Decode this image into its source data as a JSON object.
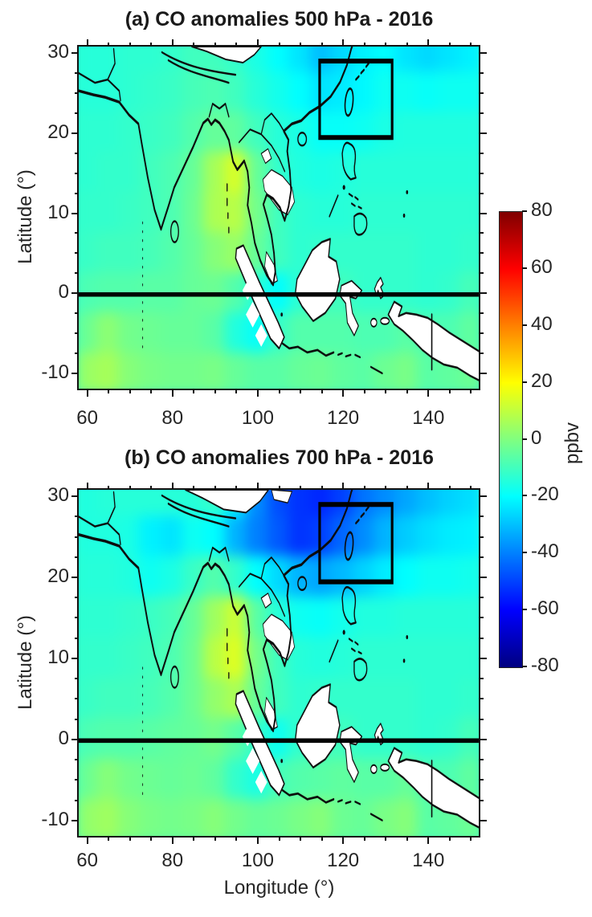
{
  "figure": {
    "panels": [
      {
        "label": "a",
        "title": "(a) CO anomalies 500 hPa - 2016",
        "pressure_level": "500 hPa",
        "year": "2016"
      },
      {
        "label": "b",
        "title": "(b) CO anomalies 700 hPa - 2016",
        "pressure_level": "700 hPa",
        "year": "2016"
      }
    ],
    "axes": {
      "x_label": "Longitude (°)",
      "y_label": "Latitude (°)",
      "x_ticks": [
        60,
        80,
        100,
        120,
        140
      ],
      "y_ticks": [
        30,
        20,
        10,
        0,
        -10
      ],
      "xlim": [
        58,
        152
      ],
      "ylim": [
        -12,
        30.8
      ]
    },
    "colorbar": {
      "label": "ppbv",
      "ticks": [
        80,
        60,
        40,
        20,
        0,
        -20,
        -40,
        -60,
        -80
      ],
      "min": -80,
      "max": 80,
      "colormap": "jet",
      "orientation": "vertical"
    },
    "annotations": {
      "study_box": {
        "lon_min": 114.5,
        "lon_max": 131.5,
        "lat_min": 19.5,
        "lat_max": 29
      },
      "equator_line_lat": 0
    }
  },
  "chart_data": [
    {
      "type": "heatmap",
      "title": "(a) CO anomalies 500 hPa - 2016",
      "xlabel": "Longitude (°)",
      "ylabel": "Latitude (°)",
      "units": "ppbv",
      "lon": [
        60,
        65,
        70,
        75,
        80,
        85,
        90,
        95,
        100,
        105,
        110,
        115,
        120,
        125,
        130,
        135,
        140,
        145,
        150
      ],
      "lat": [
        30,
        25,
        20,
        15,
        10,
        5,
        0,
        -5,
        -10
      ],
      "values_ppbv": [
        [
          -14,
          -14,
          -13,
          -13,
          -12,
          -10,
          -10,
          -12,
          -16,
          -20,
          -24,
          -30,
          -26,
          -22,
          -20,
          -24,
          -26,
          -24,
          -22
        ],
        [
          -14,
          -14,
          -13,
          -12,
          -11,
          -9,
          -8,
          -10,
          -14,
          -17,
          -20,
          -24,
          -23,
          -21,
          -18,
          -18,
          -19,
          -18,
          -18
        ],
        [
          -13,
          -13,
          -12,
          -11,
          -10,
          -7,
          -4,
          -5,
          -10,
          -14,
          -16,
          -19,
          -19,
          -18,
          -16,
          -15,
          -15,
          -15,
          -15
        ],
        [
          -13,
          -12,
          -12,
          -10,
          -8,
          -4,
          6,
          14,
          -4,
          -12,
          -15,
          -16,
          -15,
          -14,
          -14,
          -14,
          -14,
          -14,
          -14
        ],
        [
          -12,
          -12,
          -11,
          -10,
          -8,
          -3,
          7,
          9,
          -2,
          -10,
          -13,
          -14,
          -14,
          -13,
          -13,
          -13,
          -13,
          -13,
          -13
        ],
        [
          -11,
          -10,
          -10,
          -9,
          -7,
          -4,
          1,
          4,
          -4,
          -10,
          -13,
          -12,
          -12,
          -12,
          -12,
          -12,
          -13,
          -13,
          -12
        ],
        [
          -8,
          -7,
          -7,
          -6,
          -6,
          -4,
          -3,
          -7,
          -14,
          -20,
          -13,
          -10,
          -10,
          -12,
          -12,
          -12,
          -13,
          -12,
          -9
        ],
        [
          -3,
          2,
          -2,
          -3,
          -4,
          -4,
          -6,
          -15,
          -19,
          -11,
          -7,
          -7,
          -7,
          -8,
          -8,
          -6,
          -8,
          -8,
          -5
        ],
        [
          4,
          6,
          1,
          -1,
          -2,
          -2,
          -1,
          -4,
          -6,
          -6,
          -4,
          -3,
          -5,
          -6,
          -3,
          -1,
          -6,
          -5,
          -3
        ]
      ]
    },
    {
      "type": "heatmap",
      "title": "(b) CO anomalies 700 hPa - 2016",
      "xlabel": "Longitude (°)",
      "ylabel": "Latitude (°)",
      "units": "ppbv",
      "lon": [
        60,
        65,
        70,
        75,
        80,
        85,
        90,
        95,
        100,
        105,
        110,
        115,
        120,
        125,
        130,
        135,
        140,
        145,
        150
      ],
      "lat": [
        30,
        25,
        20,
        15,
        10,
        5,
        0,
        -5,
        -10
      ],
      "values_ppbv": [
        [
          -15,
          -14,
          -14,
          -14,
          -14,
          -14,
          -12,
          -22,
          -38,
          -48,
          -52,
          -54,
          -50,
          -42,
          -38,
          -34,
          -30,
          -27,
          -25
        ],
        [
          -15,
          -15,
          -16,
          -22,
          -24,
          -18,
          -20,
          -32,
          -40,
          -46,
          -52,
          -50,
          -44,
          -38,
          -32,
          -28,
          -25,
          -23,
          -22
        ],
        [
          -14,
          -14,
          -15,
          -18,
          -16,
          -11,
          -7,
          -12,
          -20,
          -26,
          -32,
          -34,
          -31,
          -27,
          -23,
          -20,
          -18,
          -18,
          -17
        ],
        [
          -13,
          -13,
          -12,
          -11,
          -9,
          -4,
          5,
          12,
          -6,
          -14,
          -18,
          -19,
          -17,
          -15,
          -15,
          -14,
          -14,
          -14,
          -14
        ],
        [
          -12,
          -12,
          -11,
          -10,
          -8,
          -3,
          9,
          15,
          -2,
          -10,
          -14,
          -15,
          -14,
          -13,
          -13,
          -13,
          -13,
          -13,
          -13
        ],
        [
          -11,
          -10,
          -10,
          -9,
          -7,
          -3,
          3,
          7,
          -4,
          -10,
          -13,
          -12,
          -12,
          -12,
          -12,
          -12,
          -13,
          -13,
          -12
        ],
        [
          -8,
          -7,
          -7,
          -6,
          -5,
          -4,
          -2,
          -6,
          -12,
          -18,
          -12,
          -10,
          -10,
          -12,
          -12,
          -12,
          -13,
          -12,
          -9
        ],
        [
          -3,
          1,
          -2,
          -3,
          -4,
          -3,
          -5,
          -12,
          -16,
          -9,
          -7,
          -6,
          -5,
          -6,
          -6,
          -4,
          -8,
          -8,
          -5
        ],
        [
          3,
          5,
          1,
          -1,
          -2,
          -1,
          1,
          -2,
          -4,
          -3,
          -1,
          1,
          -3,
          -4,
          -1,
          1,
          -6,
          -5,
          -3
        ]
      ]
    }
  ]
}
